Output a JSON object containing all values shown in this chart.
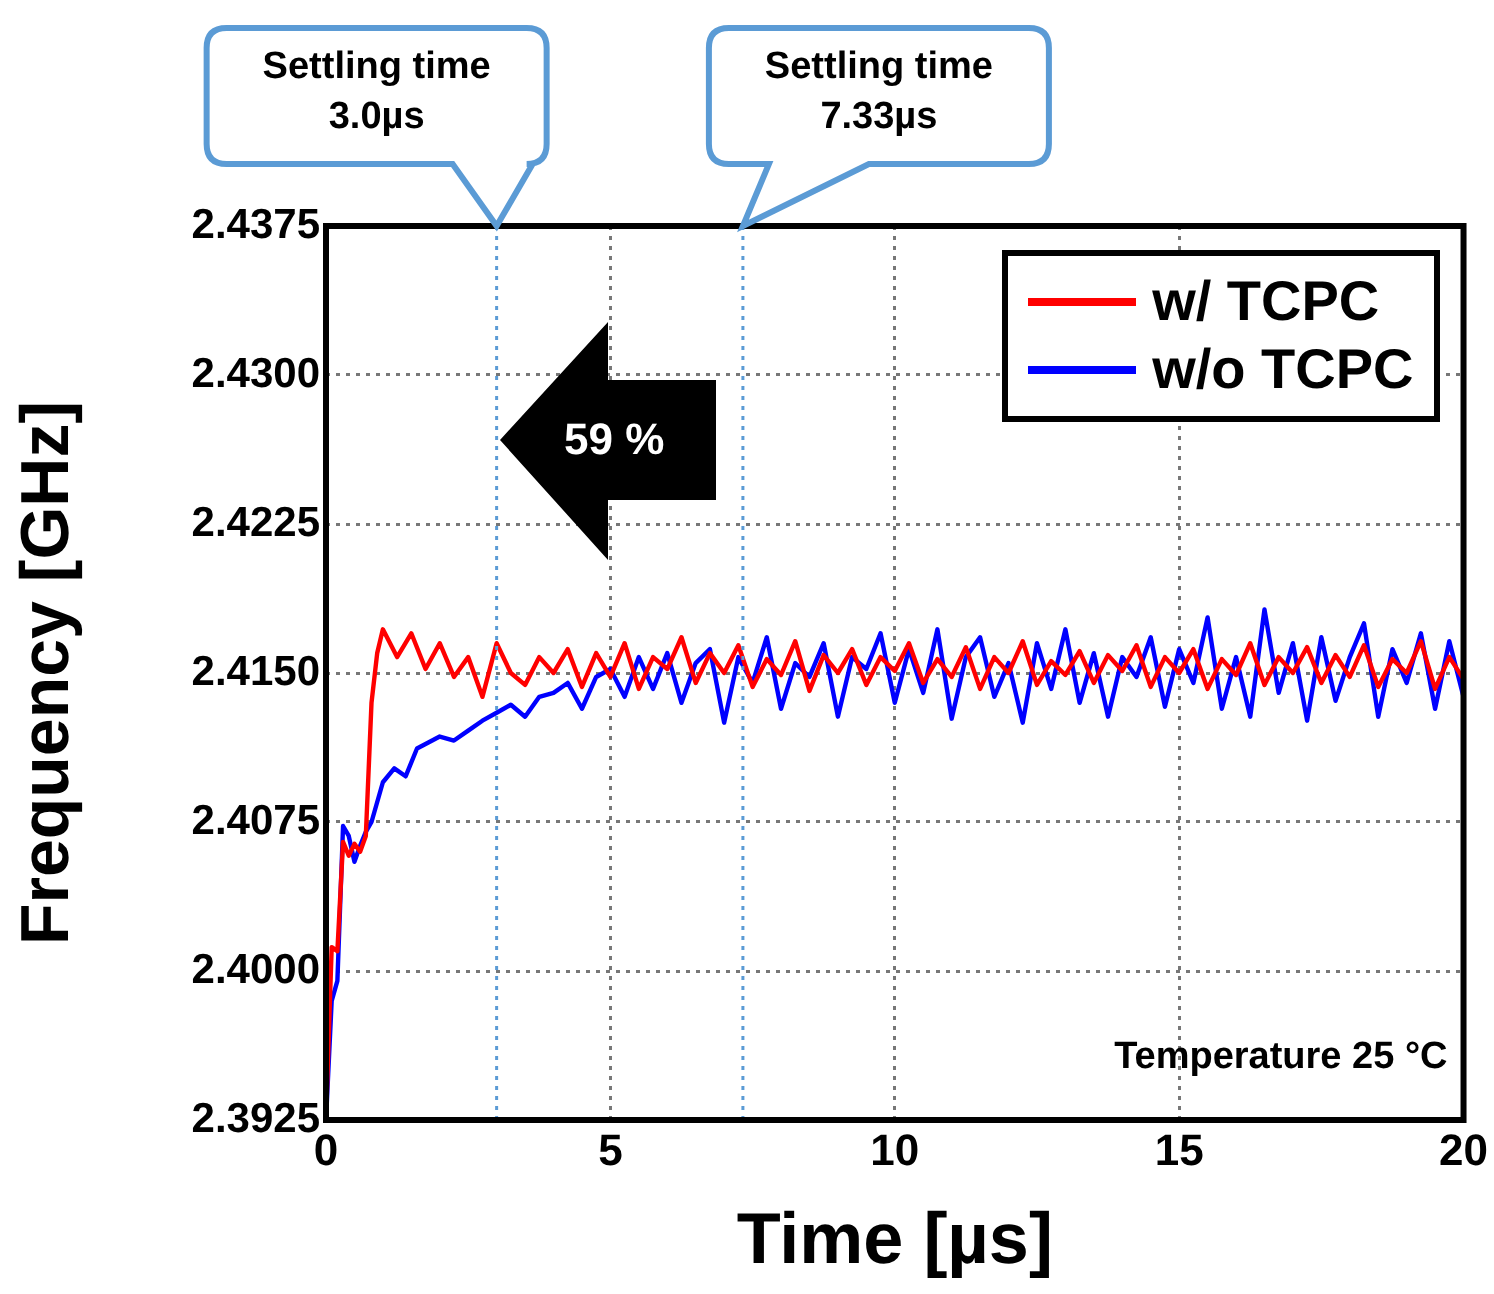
{
  "chart_data": {
    "type": "line",
    "xlabel": "Time [µs]",
    "ylabel": "Frequency [GHz]",
    "xlim": [
      0,
      20
    ],
    "xticks": [
      0,
      5,
      10,
      15,
      20
    ],
    "ylim": [
      2.3925,
      2.4375
    ],
    "yticks": [
      {
        "value": 2.3925,
        "label": "2.3925"
      },
      {
        "value": 2.4,
        "label": "2.4000"
      },
      {
        "value": 2.4075,
        "label": "2.4075"
      },
      {
        "value": 2.415,
        "label": "2.4150"
      },
      {
        "value": 2.4225,
        "label": "2.4225"
      },
      {
        "value": 2.43,
        "label": "2.4300"
      },
      {
        "value": 2.4375,
        "label": "2.4375"
      }
    ],
    "grid": true,
    "legend": "top right",
    "marker": "none",
    "line_style": "solid",
    "series": [
      {
        "name": "w/ TCPC",
        "color": "#ff0000",
        "x": [
          0,
          0.1,
          0.2,
          0.3,
          0.4,
          0.5,
          0.6,
          0.7,
          0.8,
          0.9,
          1.0,
          1.25,
          1.5,
          1.75,
          2.0,
          2.25,
          2.5,
          2.75,
          3.0,
          3.25,
          3.5,
          3.75,
          4.0,
          4.25,
          4.5,
          4.75,
          5.0,
          5.25,
          5.5,
          5.75,
          6.0,
          6.25,
          6.5,
          6.75,
          7.0,
          7.25,
          7.5,
          7.75,
          8.0,
          8.25,
          8.5,
          8.75,
          9.0,
          9.25,
          9.5,
          9.75,
          10.0,
          10.25,
          10.5,
          10.75,
          11.0,
          11.25,
          11.5,
          11.75,
          12.0,
          12.25,
          12.5,
          12.75,
          13.0,
          13.25,
          13.5,
          13.75,
          14.0,
          14.25,
          14.5,
          14.75,
          15.0,
          15.25,
          15.5,
          15.75,
          16.0,
          16.25,
          16.5,
          16.75,
          17.0,
          17.25,
          17.5,
          17.75,
          18.0,
          18.25,
          18.5,
          18.75,
          19.0,
          19.25,
          19.5,
          19.75,
          20.0
        ],
        "values": [
          2.3925,
          2.4012,
          2.401,
          2.4065,
          2.4058,
          2.4064,
          2.406,
          2.4068,
          2.4135,
          2.416,
          2.4172,
          2.4158,
          2.417,
          2.4152,
          2.4165,
          2.4148,
          2.4158,
          2.4138,
          2.4165,
          2.415,
          2.4144,
          2.4158,
          2.415,
          2.4162,
          2.4143,
          2.416,
          2.4148,
          2.4165,
          2.4142,
          2.4158,
          2.4152,
          2.4168,
          2.4145,
          2.416,
          2.415,
          2.4164,
          2.4143,
          2.4157,
          2.4149,
          2.4166,
          2.4141,
          2.4159,
          2.415,
          2.4162,
          2.4144,
          2.4158,
          2.4151,
          2.4165,
          2.4145,
          2.4157,
          2.4148,
          2.4163,
          2.4142,
          2.4158,
          2.415,
          2.4166,
          2.4144,
          2.4156,
          2.4149,
          2.4161,
          2.4145,
          2.4159,
          2.4151,
          2.4164,
          2.4143,
          2.4158,
          2.415,
          2.4162,
          2.4142,
          2.4157,
          2.4149,
          2.4165,
          2.4144,
          2.4158,
          2.415,
          2.4163,
          2.4145,
          2.4159,
          2.4148,
          2.4164,
          2.4143,
          2.4157,
          2.415,
          2.4166,
          2.4142,
          2.4158,
          2.4147
        ]
      },
      {
        "name": "w/o TCPC",
        "color": "#0000ff",
        "x": [
          0,
          0.1,
          0.2,
          0.3,
          0.4,
          0.5,
          0.6,
          0.7,
          0.8,
          1.0,
          1.2,
          1.4,
          1.6,
          1.8,
          2.0,
          2.25,
          2.5,
          2.75,
          3.0,
          3.25,
          3.5,
          3.75,
          4.0,
          4.25,
          4.5,
          4.75,
          5.0,
          5.25,
          5.5,
          5.75,
          6.0,
          6.25,
          6.5,
          6.75,
          7.0,
          7.25,
          7.5,
          7.75,
          8.0,
          8.25,
          8.5,
          8.75,
          9.0,
          9.25,
          9.5,
          9.75,
          10.0,
          10.25,
          10.5,
          10.75,
          11.0,
          11.25,
          11.5,
          11.75,
          12.0,
          12.25,
          12.5,
          12.75,
          13.0,
          13.25,
          13.5,
          13.75,
          14.0,
          14.25,
          14.5,
          14.75,
          15.0,
          15.25,
          15.5,
          15.75,
          16.0,
          16.25,
          16.5,
          16.75,
          17.0,
          17.25,
          17.5,
          17.75,
          18.0,
          18.25,
          18.5,
          18.75,
          19.0,
          19.25,
          19.5,
          19.75,
          20.0
        ],
        "values": [
          2.3925,
          2.3985,
          2.3995,
          2.4073,
          2.4068,
          2.4055,
          2.4063,
          2.407,
          2.4075,
          2.4095,
          2.4102,
          2.4098,
          2.4112,
          2.4115,
          2.4118,
          2.4116,
          2.4121,
          2.4126,
          2.413,
          2.4134,
          2.4128,
          2.4138,
          2.414,
          2.4145,
          2.4132,
          2.4148,
          2.4152,
          2.4138,
          2.4158,
          2.4142,
          2.416,
          2.4135,
          2.4155,
          2.4162,
          2.4125,
          2.4158,
          2.4145,
          2.4168,
          2.4132,
          2.4155,
          2.4148,
          2.4165,
          2.4128,
          2.4158,
          2.4152,
          2.417,
          2.4135,
          2.4162,
          2.414,
          2.4172,
          2.4127,
          2.4158,
          2.4168,
          2.4138,
          2.4155,
          2.4125,
          2.4165,
          2.4142,
          2.4172,
          2.4135,
          2.416,
          2.4128,
          2.4158,
          2.4148,
          2.4168,
          2.4133,
          2.4162,
          2.4145,
          2.4178,
          2.4132,
          2.4158,
          2.4128,
          2.4182,
          2.414,
          2.4165,
          2.4126,
          2.4168,
          2.4136,
          2.4158,
          2.4175,
          2.4128,
          2.4162,
          2.4145,
          2.417,
          2.4132,
          2.4166,
          2.4138
        ]
      }
    ],
    "ref_lines": [
      {
        "axis": "x",
        "value": 3.0,
        "label": "Settling time\n3.0µs",
        "color": "#5b9bd5",
        "line_style": "dotted"
      },
      {
        "axis": "x",
        "value": 7.33,
        "label": "Settling time\n7.33µs",
        "color": "#5b9bd5",
        "line_style": "dotted"
      }
    ],
    "annotations": [
      "59 %",
      "Temperature 25 °C"
    ]
  }
}
